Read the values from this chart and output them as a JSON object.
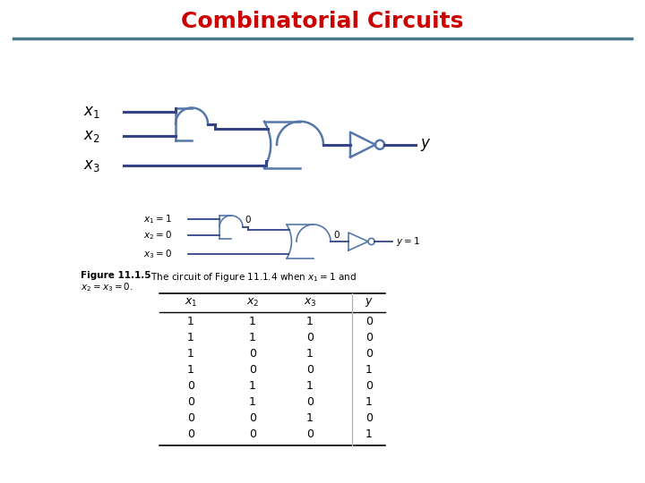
{
  "title": "Combinatorial Circuits",
  "title_color": "#CC0000",
  "title_fontsize": 18,
  "separator_color": "#4a7a8a",
  "bg_color": "#ffffff",
  "table_data": [
    [
      "1",
      "1",
      "1",
      "0"
    ],
    [
      "1",
      "1",
      "0",
      "0"
    ],
    [
      "1",
      "0",
      "1",
      "0"
    ],
    [
      "1",
      "0",
      "0",
      "1"
    ],
    [
      "0",
      "1",
      "1",
      "0"
    ],
    [
      "0",
      "1",
      "0",
      "1"
    ],
    [
      "0",
      "0",
      "1",
      "0"
    ],
    [
      "0",
      "0",
      "0",
      "1"
    ]
  ],
  "gate_color": "#5577aa",
  "wire_color": "#334488"
}
